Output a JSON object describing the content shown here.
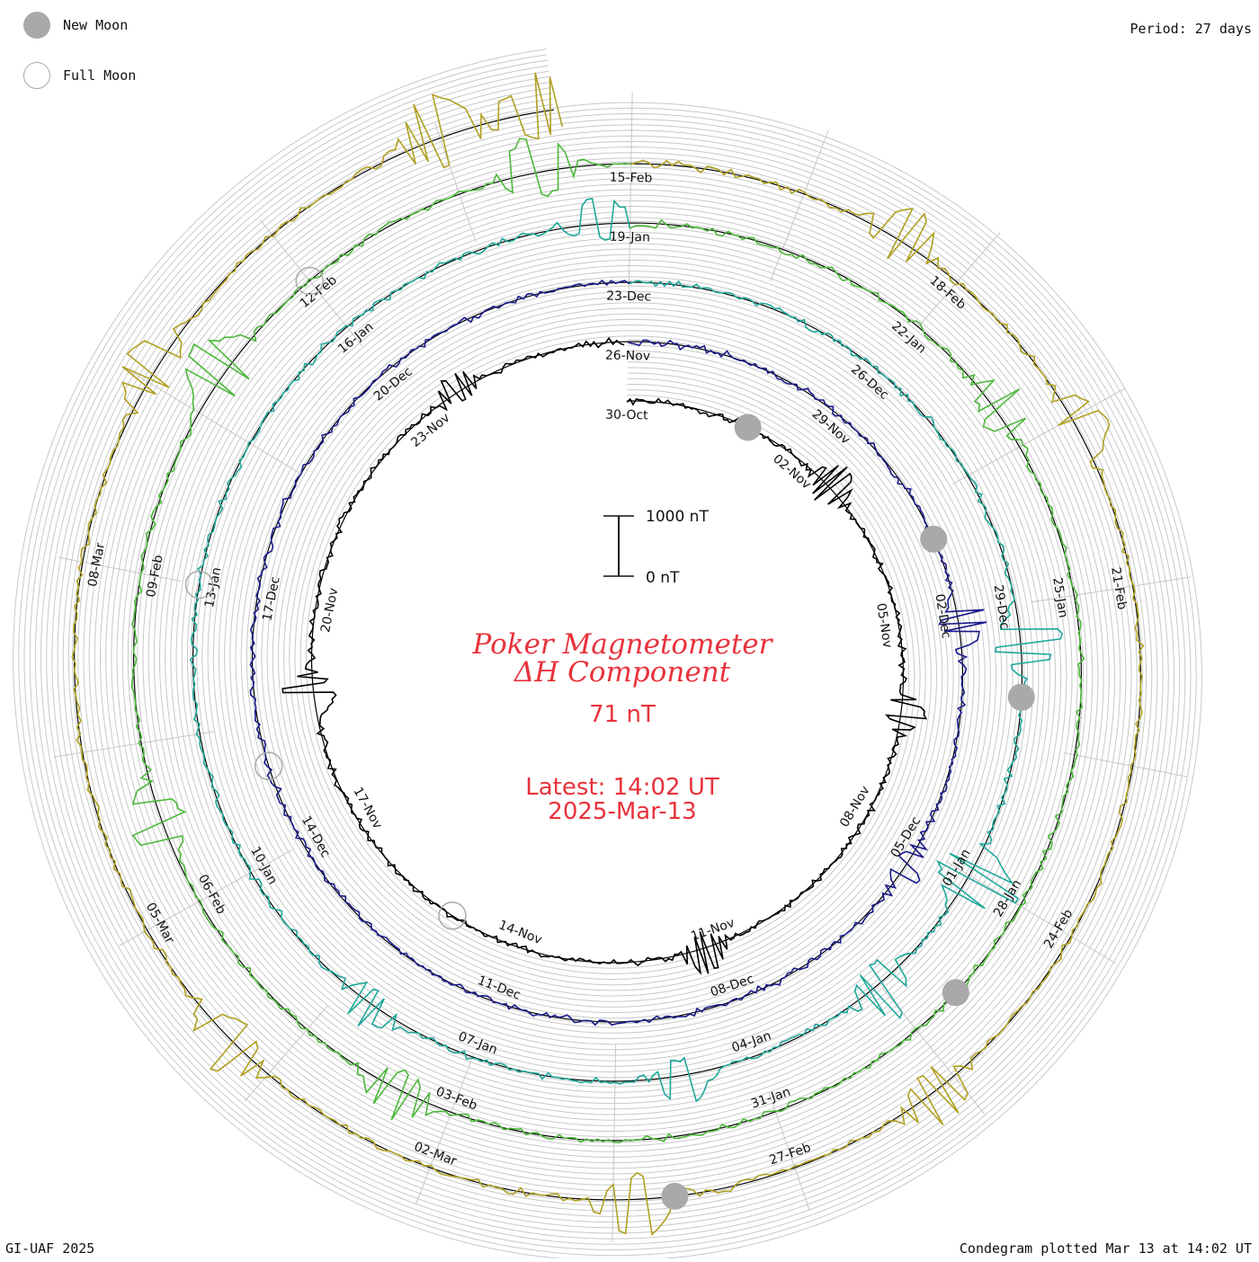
{
  "header": {
    "period_label": "Period: 27 days"
  },
  "legend": [
    {
      "kind": "new",
      "label": "New Moon"
    },
    {
      "kind": "full",
      "label": "Full Moon"
    }
  ],
  "footer": {
    "credit": "GI-UAF 2025",
    "plotted": "Condegram plotted Mar 13 at 14:02 UT"
  },
  "center": {
    "title_line1": "Poker Magnetometer",
    "title_line2": "ΔH Component",
    "value": "71 nT",
    "latest": "Latest: 14:02 UT",
    "date": "2025-Mar-13"
  },
  "scale_bar": {
    "top": "1000 nT",
    "bottom": "0 nT"
  },
  "colors": {
    "grid": "#c8c8c8",
    "baseline": "#000000",
    "accent": "#e8323c",
    "moon": "#a9a9a9"
  },
  "chart_data": {
    "type": "line",
    "title": "Poker Magnetometer ΔH Component",
    "period_days": 27,
    "value_nT": 71,
    "latest": "Latest: 14:02 UT 2025-Mar-13",
    "scale_nT": [
      0,
      1000
    ],
    "date_labels": [
      {
        "text": "30-Oct",
        "day": 0
      },
      {
        "text": "02-Nov",
        "day": 3
      },
      {
        "text": "05-Nov",
        "day": 6
      },
      {
        "text": "08-Nov",
        "day": 9
      },
      {
        "text": "11-Nov",
        "day": 12
      },
      {
        "text": "14-Nov",
        "day": 15
      },
      {
        "text": "17-Nov",
        "day": 18
      },
      {
        "text": "20-Nov",
        "day": 21
      },
      {
        "text": "23-Nov",
        "day": 24
      },
      {
        "text": "26-Nov",
        "day": 27
      },
      {
        "text": "29-Nov",
        "day": 30
      },
      {
        "text": "02-Dec",
        "day": 33
      },
      {
        "text": "05-Dec",
        "day": 36
      },
      {
        "text": "08-Dec",
        "day": 39
      },
      {
        "text": "11-Dec",
        "day": 42
      },
      {
        "text": "14-Dec",
        "day": 45
      },
      {
        "text": "17-Dec",
        "day": 48
      },
      {
        "text": "20-Dec",
        "day": 51
      },
      {
        "text": "23-Dec",
        "day": 54
      },
      {
        "text": "26-Dec",
        "day": 57
      },
      {
        "text": "29-Dec",
        "day": 60
      },
      {
        "text": "01-Jan",
        "day": 63
      },
      {
        "text": "04-Jan",
        "day": 66
      },
      {
        "text": "07-Jan",
        "day": 69
      },
      {
        "text": "10-Jan",
        "day": 72
      },
      {
        "text": "13-Jan",
        "day": 75
      },
      {
        "text": "16-Jan",
        "day": 78
      },
      {
        "text": "19-Jan",
        "day": 81
      },
      {
        "text": "22-Jan",
        "day": 84
      },
      {
        "text": "25-Jan",
        "day": 87
      },
      {
        "text": "28-Jan",
        "day": 90
      },
      {
        "text": "31-Jan",
        "day": 93
      },
      {
        "text": "03-Feb",
        "day": 96
      },
      {
        "text": "06-Feb",
        "day": 99
      },
      {
        "text": "09-Feb",
        "day": 102
      },
      {
        "text": "12-Feb",
        "day": 105
      },
      {
        "text": "15-Feb",
        "day": 108
      },
      {
        "text": "18-Feb",
        "day": 111
      },
      {
        "text": "21-Feb",
        "day": 114
      },
      {
        "text": "24-Feb",
        "day": 117
      },
      {
        "text": "27-Feb",
        "day": 120
      },
      {
        "text": "02-Mar",
        "day": 123
      },
      {
        "text": "05-Mar",
        "day": 126
      },
      {
        "text": "08-Mar",
        "day": 129
      }
    ],
    "new_moons": [
      {
        "date": "01-Nov",
        "day": 2
      },
      {
        "date": "01-Dec",
        "day": 32
      },
      {
        "date": "30-Dec",
        "day": 61
      },
      {
        "date": "29-Jan",
        "day": 91
      },
      {
        "date": "28-Feb",
        "day": 121
      }
    ],
    "full_moons": [
      {
        "date": "15-Nov",
        "day": 16
      },
      {
        "date": "15-Dec",
        "day": 46
      },
      {
        "date": "13-Jan",
        "day": 75
      },
      {
        "date": "12-Feb",
        "day": 105
      }
    ],
    "series": [
      {
        "start": "30-Oct",
        "end": "26-Nov",
        "color": "#000000"
      },
      {
        "start": "26-Nov",
        "end": "23-Dec",
        "color": "#1a1a8c"
      },
      {
        "start": "23-Dec",
        "end": "19-Jan",
        "color": "#1ea89a"
      },
      {
        "start": "19-Jan",
        "end": "15-Feb",
        "color": "#4cb83a"
      },
      {
        "start": "15-Feb",
        "end": "13-Mar",
        "color": "#b0a020"
      },
      {
        "start": "13-Mar",
        "end": "13-Mar",
        "color": "#c01818"
      }
    ],
    "disturbances": [
      {
        "day": 3.6,
        "magnitude_nT": 450
      },
      {
        "day": 7.4,
        "magnitude_nT": 380
      },
      {
        "day": 12.2,
        "magnitude_nT": 420
      },
      {
        "day": 19.8,
        "magnitude_nT": 520
      },
      {
        "day": 24.6,
        "magnitude_nT": 310
      },
      {
        "day": 33.1,
        "magnitude_nT": 480
      },
      {
        "day": 36.3,
        "magnitude_nT": 300
      },
      {
        "day": 60.4,
        "magnitude_nT": 700
      },
      {
        "day": 63.0,
        "magnitude_nT": 900
      },
      {
        "day": 64.5,
        "magnitude_nT": 600
      },
      {
        "day": 66.8,
        "magnitude_nT": 480
      },
      {
        "day": 70.2,
        "magnitude_nT": 420
      },
      {
        "day": 80.7,
        "magnitude_nT": 450
      },
      {
        "day": 85.1,
        "magnitude_nT": 500
      },
      {
        "day": 96.5,
        "magnitude_nT": 520
      },
      {
        "day": 99.8,
        "magnitude_nT": 600
      },
      {
        "day": 103.9,
        "magnitude_nT": 700
      },
      {
        "day": 107.2,
        "magnitude_nT": 650
      },
      {
        "day": 110.4,
        "magnitude_nT": 580
      },
      {
        "day": 112.6,
        "magnitude_nT": 500
      },
      {
        "day": 118.7,
        "magnitude_nT": 560
      },
      {
        "day": 121.3,
        "magnitude_nT": 650
      },
      {
        "day": 124.9,
        "magnitude_nT": 600
      },
      {
        "day": 130.6,
        "magnitude_nT": 550
      },
      {
        "day": 133.5,
        "magnitude_nT": 700
      },
      {
        "day": 134.3,
        "magnitude_nT": 650
      }
    ]
  }
}
